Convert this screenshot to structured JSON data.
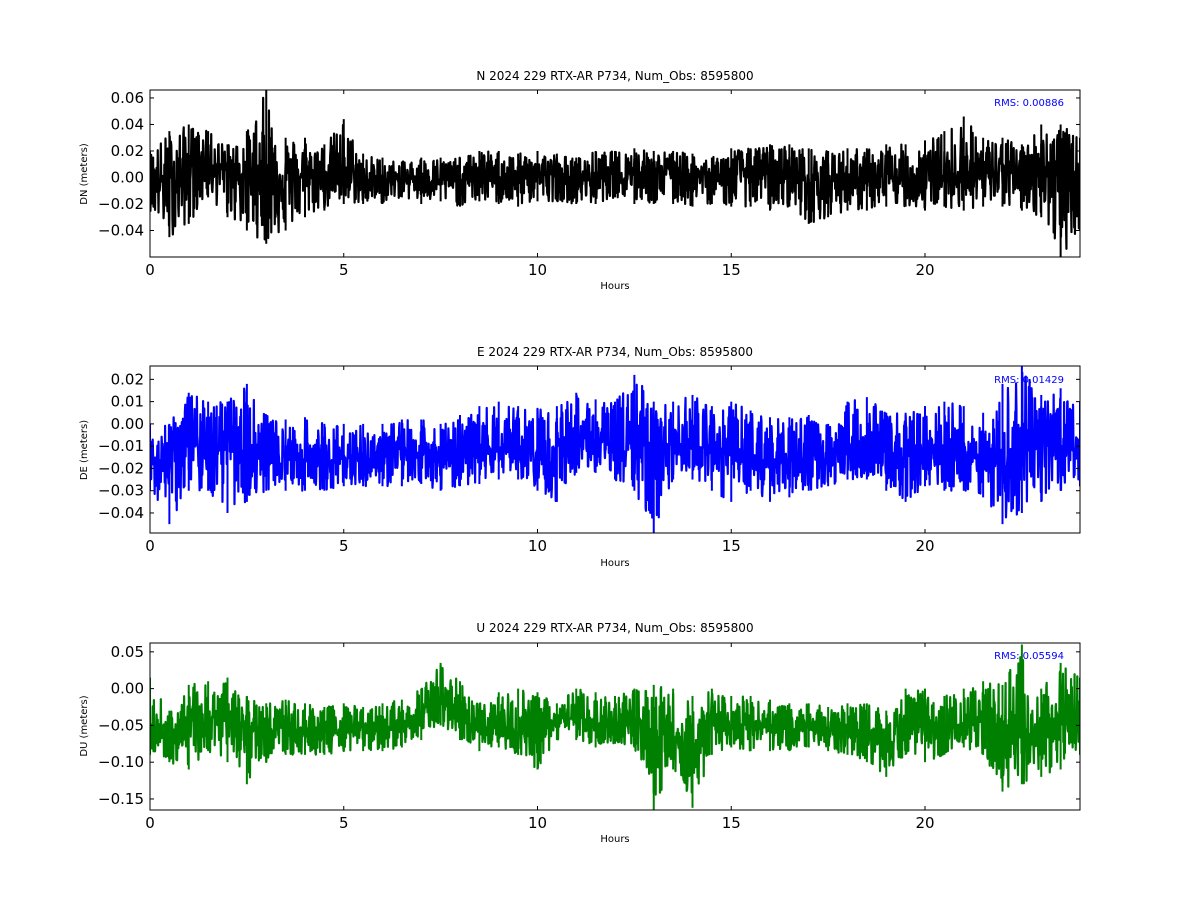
{
  "chart_data": [
    {
      "type": "line",
      "title": "N 2024 229 RTX-AR  P734, Num_Obs: 8595800",
      "xlabel": "Hours",
      "ylabel": "DN (meters)",
      "xlim": [
        0,
        24
      ],
      "ylim": [
        -0.06,
        0.066
      ],
      "xticks": [
        "0",
        "5",
        "10",
        "15",
        "20"
      ],
      "yticks": [
        "0.06",
        "0.04",
        "0.02",
        "0.00",
        "−0.02",
        "−0.04"
      ],
      "annotation": "RMS:  0.00886",
      "color": "#000000",
      "annotation_color": "#0000ff",
      "series": [
        {
          "x": [
            0,
            0.5,
            1,
            1.5,
            2,
            2.5,
            3,
            3.5,
            4,
            4.5,
            5,
            5.5,
            6,
            6.5,
            7,
            7.5,
            8,
            8.5,
            9,
            9.5,
            10,
            10.5,
            11,
            11.5,
            12,
            12.5,
            13,
            13.5,
            14,
            14.5,
            15,
            15.5,
            16,
            16.5,
            17,
            17.5,
            18,
            18.5,
            19,
            19.5,
            20,
            20.5,
            21,
            21.5,
            22,
            22.5,
            23,
            23.5,
            24
          ],
          "y_center": [
            0.0,
            -0.005,
            0.008,
            0.012,
            0.005,
            0.002,
            -0.003,
            0.002,
            0.0,
            0.005,
            0.0,
            -0.005,
            -0.003,
            -0.002,
            0.002,
            -0.002,
            -0.003,
            0.002,
            0.0,
            -0.002,
            0.002,
            0.002,
            -0.003,
            0.0,
            0.0,
            0.005,
            0.003,
            0.004,
            0.002,
            0.0,
            0.004,
            0.006,
            0.002,
            0.004,
            -0.003,
            -0.002,
            0.0,
            -0.005,
            -0.003,
            -0.002,
            0.002,
            0.0,
            0.004,
            0.003,
            0.002,
            0.005,
            0.004,
            0.0,
            0.0
          ],
          "y_min": [
            -0.025,
            -0.045,
            -0.035,
            -0.015,
            -0.03,
            -0.04,
            -0.05,
            -0.04,
            -0.03,
            -0.025,
            -0.02,
            -0.02,
            -0.02,
            -0.015,
            -0.02,
            -0.018,
            -0.022,
            -0.018,
            -0.02,
            -0.022,
            -0.018,
            -0.018,
            -0.02,
            -0.02,
            -0.015,
            -0.02,
            -0.02,
            -0.02,
            -0.022,
            -0.02,
            -0.022,
            -0.022,
            -0.025,
            -0.022,
            -0.035,
            -0.03,
            -0.025,
            -0.025,
            -0.022,
            -0.022,
            -0.025,
            -0.022,
            -0.025,
            -0.022,
            -0.022,
            -0.025,
            -0.03,
            -0.06,
            -0.04
          ],
          "y_max": [
            0.02,
            0.035,
            0.04,
            0.035,
            0.025,
            0.035,
            0.066,
            0.03,
            0.03,
            0.025,
            0.044,
            0.018,
            0.015,
            0.012,
            0.015,
            0.015,
            0.015,
            0.02,
            0.02,
            0.018,
            0.02,
            0.018,
            0.015,
            0.02,
            0.02,
            0.022,
            0.02,
            0.02,
            0.018,
            0.015,
            0.022,
            0.022,
            0.025,
            0.025,
            0.022,
            0.02,
            0.022,
            0.022,
            0.025,
            0.025,
            0.028,
            0.035,
            0.046,
            0.03,
            0.03,
            0.025,
            0.04,
            0.04,
            0.03
          ]
        }
      ]
    },
    {
      "type": "line",
      "title": "E 2024 229 RTX-AR  P734, Num_Obs: 8595800",
      "xlabel": "Hours",
      "ylabel": "DE (meters)",
      "xlim": [
        0,
        24
      ],
      "ylim": [
        -0.049,
        0.026
      ],
      "xticks": [
        "0",
        "5",
        "10",
        "15",
        "20"
      ],
      "yticks": [
        "0.02",
        "0.01",
        "0.00",
        "−0.01",
        "−0.02",
        "−0.03",
        "−0.04"
      ],
      "annotation": "RMS:  0.01429",
      "color": "#0000ff",
      "annotation_color": "#0000ff",
      "series": [
        {
          "x": [
            0,
            0.5,
            1,
            1.5,
            2,
            2.5,
            3,
            3.5,
            4,
            4.5,
            5,
            5.5,
            6,
            6.5,
            7,
            7.5,
            8,
            8.5,
            9,
            9.5,
            10,
            10.5,
            11,
            11.5,
            12,
            12.5,
            13,
            13.5,
            14,
            14.5,
            15,
            15.5,
            16,
            16.5,
            17,
            17.5,
            18,
            18.5,
            19,
            19.5,
            20,
            20.5,
            21,
            21.5,
            22,
            22.5,
            23,
            23.5,
            24
          ],
          "y_center": [
            -0.015,
            -0.018,
            -0.008,
            -0.01,
            -0.012,
            -0.015,
            -0.016,
            -0.015,
            -0.016,
            -0.017,
            -0.015,
            -0.016,
            -0.015,
            -0.014,
            -0.013,
            -0.016,
            -0.015,
            -0.012,
            -0.011,
            -0.01,
            -0.012,
            -0.01,
            -0.006,
            -0.007,
            -0.009,
            -0.008,
            -0.012,
            -0.01,
            -0.01,
            -0.012,
            -0.014,
            -0.015,
            -0.016,
            -0.016,
            -0.014,
            -0.015,
            -0.01,
            -0.01,
            -0.014,
            -0.015,
            -0.012,
            -0.013,
            -0.014,
            -0.015,
            -0.018,
            -0.012,
            -0.008,
            -0.01,
            -0.012
          ],
          "y_min": [
            -0.03,
            -0.045,
            -0.03,
            -0.03,
            -0.04,
            -0.035,
            -0.03,
            -0.03,
            -0.03,
            -0.03,
            -0.028,
            -0.028,
            -0.028,
            -0.028,
            -0.027,
            -0.03,
            -0.028,
            -0.027,
            -0.025,
            -0.025,
            -0.03,
            -0.035,
            -0.022,
            -0.022,
            -0.025,
            -0.03,
            -0.049,
            -0.025,
            -0.025,
            -0.03,
            -0.035,
            -0.03,
            -0.035,
            -0.033,
            -0.03,
            -0.028,
            -0.025,
            -0.025,
            -0.03,
            -0.035,
            -0.028,
            -0.03,
            -0.03,
            -0.033,
            -0.045,
            -0.04,
            -0.035,
            -0.03,
            -0.028
          ],
          "y_max": [
            0.0,
            0.0,
            0.014,
            0.01,
            0.01,
            0.018,
            0.004,
            0.002,
            0.003,
            0.0,
            0.0,
            0.0,
            0.0,
            0.002,
            0.002,
            0.0,
            0.004,
            0.008,
            0.01,
            0.008,
            0.007,
            0.008,
            0.014,
            0.011,
            0.01,
            0.022,
            0.01,
            0.01,
            0.013,
            0.008,
            0.01,
            0.006,
            0.003,
            0.003,
            0.004,
            0.0,
            0.01,
            0.012,
            0.005,
            0.005,
            0.008,
            0.01,
            0.008,
            0.005,
            0.018,
            0.026,
            0.013,
            0.016,
            0.01
          ]
        }
      ]
    },
    {
      "type": "line",
      "title": "U 2024 229 RTX-AR  P734, Num_Obs: 8595800",
      "xlabel": "Hours",
      "ylabel": "DU (meters)",
      "xlim": [
        0,
        24
      ],
      "ylim": [
        -0.165,
        0.062
      ],
      "xticks": [
        "0",
        "5",
        "10",
        "15",
        "20"
      ],
      "yticks": [
        "0.05",
        "0.00",
        "−0.05",
        "−0.10",
        "−0.15"
      ],
      "annotation": "RMS:  0.05594",
      "color": "#008000",
      "annotation_color": "#0000ff",
      "series": [
        {
          "x": [
            0,
            0.5,
            1,
            1.5,
            2,
            2.5,
            3,
            3.5,
            4,
            4.5,
            5,
            5.5,
            6,
            6.5,
            7,
            7.5,
            8,
            8.5,
            9,
            9.5,
            10,
            10.5,
            11,
            11.5,
            12,
            12.5,
            13,
            13.5,
            14,
            14.5,
            15,
            15.5,
            16,
            16.5,
            17,
            17.5,
            18,
            18.5,
            19,
            19.5,
            20,
            20.5,
            21,
            21.5,
            22,
            22.5,
            23,
            23.5,
            24
          ],
          "y_center": [
            -0.06,
            -0.07,
            -0.045,
            -0.035,
            -0.04,
            -0.06,
            -0.055,
            -0.05,
            -0.055,
            -0.06,
            -0.06,
            -0.05,
            -0.055,
            -0.045,
            -0.035,
            -0.01,
            -0.04,
            -0.055,
            -0.05,
            -0.06,
            -0.07,
            -0.04,
            -0.04,
            -0.05,
            -0.045,
            -0.04,
            -0.065,
            -0.07,
            -0.08,
            -0.04,
            -0.045,
            -0.05,
            -0.055,
            -0.055,
            -0.055,
            -0.06,
            -0.06,
            -0.065,
            -0.085,
            -0.04,
            -0.04,
            -0.05,
            -0.05,
            -0.04,
            -0.06,
            -0.06,
            -0.06,
            -0.045,
            -0.05
          ],
          "y_min": [
            -0.09,
            -0.1,
            -0.11,
            -0.085,
            -0.1,
            -0.13,
            -0.1,
            -0.09,
            -0.09,
            -0.09,
            -0.085,
            -0.085,
            -0.085,
            -0.08,
            -0.07,
            -0.05,
            -0.07,
            -0.085,
            -0.08,
            -0.09,
            -0.11,
            -0.07,
            -0.07,
            -0.08,
            -0.075,
            -0.08,
            -0.165,
            -0.11,
            -0.162,
            -0.09,
            -0.08,
            -0.085,
            -0.085,
            -0.085,
            -0.08,
            -0.085,
            -0.09,
            -0.1,
            -0.12,
            -0.09,
            -0.1,
            -0.09,
            -0.08,
            -0.09,
            -0.14,
            -0.13,
            -0.12,
            -0.11,
            -0.09
          ],
          "y_max": [
            0.015,
            -0.03,
            0.005,
            0.01,
            0.015,
            -0.01,
            -0.02,
            -0.015,
            -0.02,
            -0.025,
            -0.02,
            -0.025,
            -0.02,
            -0.015,
            0.0,
            0.035,
            0.01,
            -0.02,
            -0.005,
            0.0,
            -0.005,
            -0.02,
            0.0,
            -0.005,
            -0.01,
            0.0,
            0.005,
            0.0,
            -0.01,
            0.0,
            -0.01,
            -0.01,
            -0.015,
            -0.02,
            -0.02,
            -0.025,
            -0.02,
            -0.02,
            -0.03,
            0.0,
            0.0,
            -0.01,
            0.0,
            0.01,
            0.005,
            0.06,
            0.0,
            0.035,
            0.015
          ]
        }
      ]
    }
  ]
}
